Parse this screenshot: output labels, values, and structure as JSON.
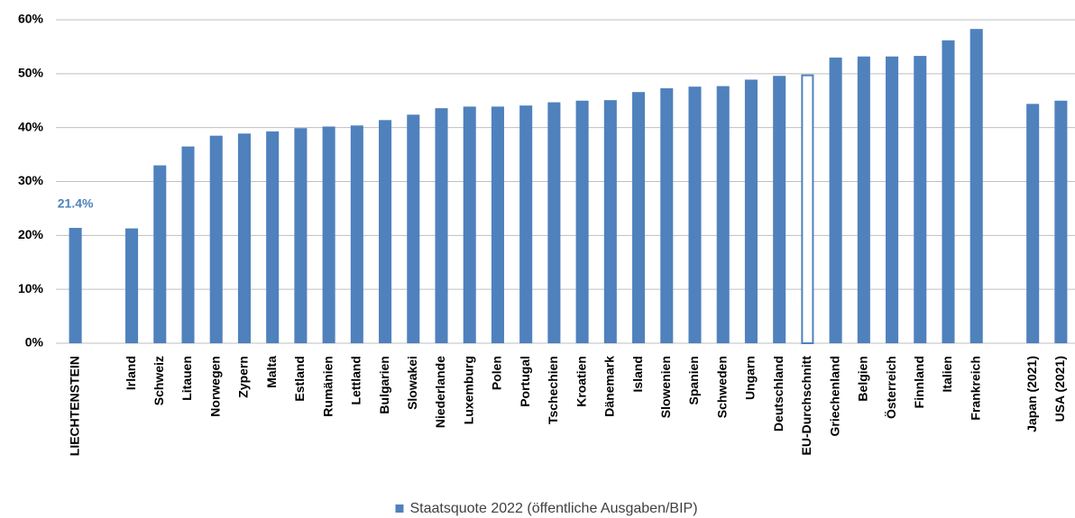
{
  "chart_data": {
    "type": "bar",
    "categories": [
      "LIECHTENSTEIN",
      null,
      "Irland",
      "Schweiz",
      "Litauen",
      "Norwegen",
      "Zypern",
      "Malta",
      "Estland",
      "Rumänien",
      "Lettland",
      "Bulgarien",
      "Slowakei",
      "Niederlande",
      "Luxemburg",
      "Polen",
      "Portugal",
      "Tschechien",
      "Kroatien",
      "Dänemark",
      "Island",
      "Slowenien",
      "Spanien",
      "Schweden",
      "Ungarn",
      "Deutschland",
      "EU-Durchschnitt",
      "Griechenland",
      "Belgien",
      "Österreich",
      "Finnland",
      "Italien",
      "Frankreich",
      null,
      "Japan (2021)",
      "USA (2021)"
    ],
    "series": [
      {
        "name": "Staatsquote 2022 (öffentliche Ausgaben/BIP)",
        "color": "#4f81bd",
        "values": [
          21.4,
          null,
          21.3,
          33.0,
          36.5,
          38.5,
          38.9,
          39.3,
          39.9,
          40.2,
          40.4,
          41.4,
          42.4,
          43.6,
          43.9,
          43.9,
          44.1,
          44.7,
          45.0,
          45.1,
          46.6,
          47.3,
          47.6,
          47.7,
          48.9,
          49.6,
          49.7,
          53.0,
          53.2,
          53.2,
          53.3,
          56.2,
          58.3,
          null,
          44.4,
          45.0
        ],
        "value_labels": [
          "21.4%",
          null,
          null,
          null,
          null,
          null,
          null,
          null,
          null,
          null,
          null,
          null,
          null,
          null,
          null,
          null,
          null,
          null,
          null,
          null,
          null,
          null,
          null,
          null,
          null,
          null,
          null,
          null,
          null,
          null,
          null,
          null,
          null,
          null,
          null,
          null
        ]
      }
    ],
    "outlined_bars": [
      26
    ],
    "ylim": [
      0,
      60
    ],
    "yticks": [
      {
        "value": 0,
        "label": "0%"
      },
      {
        "value": 10,
        "label": "10%"
      },
      {
        "value": 20,
        "label": "20%"
      },
      {
        "value": 30,
        "label": "30%"
      },
      {
        "value": 40,
        "label": "40%"
      },
      {
        "value": 50,
        "label": "50%"
      },
      {
        "value": 60,
        "label": "60%"
      }
    ],
    "grid": true,
    "legend": "bottom"
  }
}
